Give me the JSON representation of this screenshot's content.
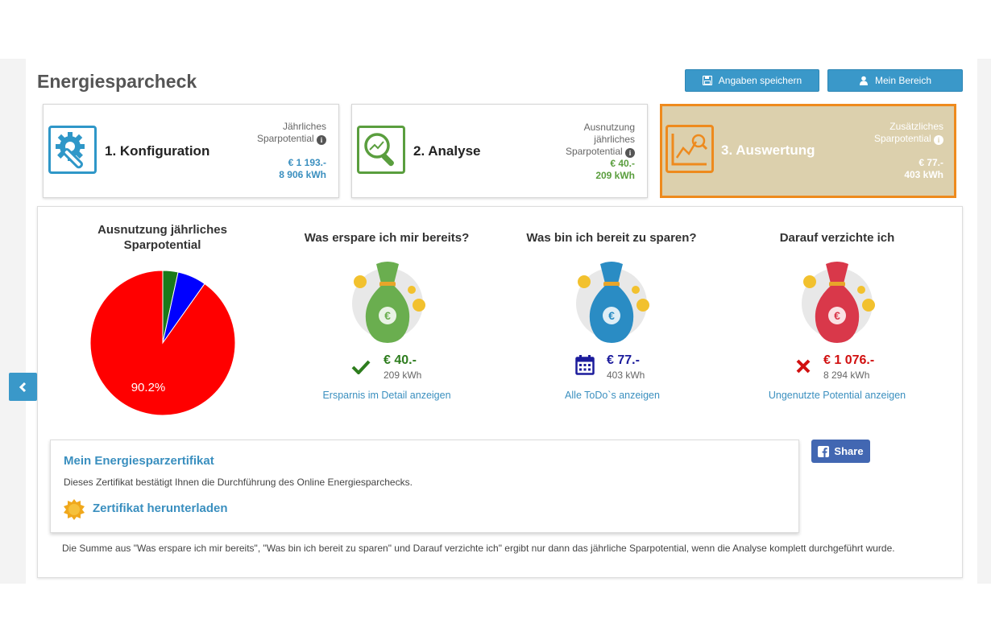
{
  "header": {
    "title": "Energiesparcheck",
    "save_label": "Angaben speichern",
    "area_label": "Mein Bereich"
  },
  "steps": [
    {
      "label": "1. Konfiguration",
      "info_lines": [
        "Jährliches",
        "Sparpotential"
      ],
      "euro": "€ 1 193.-",
      "kwh": "8 906 kWh",
      "value_color": "#3a8fbf",
      "icon": "gear-wrench-icon"
    },
    {
      "label": "2. Analyse",
      "info_lines": [
        "Ausnutzung",
        "jährliches",
        "Sparpotential"
      ],
      "euro": "€ 40.-",
      "kwh": "209 kWh",
      "value_color": "#5a9e3e",
      "icon": "magnifier-chart-icon"
    },
    {
      "label": "3. Auswertung",
      "info_lines": [
        "Zusätzliches",
        "Sparpotential"
      ],
      "euro": "€ 77.-",
      "kwh": "403 kWh",
      "value_color": "#ffffff",
      "icon": "chart-analysis-icon"
    }
  ],
  "pie": {
    "heading": "Ausnutzung jährliches Sparpotential",
    "label": "90.2%"
  },
  "chart_data": {
    "type": "pie",
    "title": "Ausnutzung jährliches Sparpotential",
    "slices": [
      {
        "value": 3.4,
        "color": "#1a7a1a"
      },
      {
        "value": 6.4,
        "color": "#0000ff"
      },
      {
        "value": 90.2,
        "color": "#ff0000"
      }
    ]
  },
  "columns": [
    {
      "heading": "Was erspare ich mir bereits?",
      "amount": "€ 40.-",
      "kwh": "209 kWh",
      "link": "Ersparnis im Detail anzeigen",
      "bag_color": "#6aae4f",
      "amount_color": "#2e7d1e",
      "status_icon": "check-icon"
    },
    {
      "heading": "Was bin ich bereit zu sparen?",
      "amount": "€ 77.-",
      "kwh": "403 kWh",
      "link": "Alle ToDo`s anzeigen",
      "bag_color": "#2a8cc4",
      "amount_color": "#1c1c9c",
      "status_icon": "calendar-icon"
    },
    {
      "heading": "Darauf verzichte ich",
      "amount": "€ 1 076.-",
      "kwh": "8 294 kWh",
      "link": "Ungenutzte Potential anzeigen",
      "bag_color": "#d9384a",
      "amount_color": "#d11010",
      "status_icon": "cross-icon"
    }
  ],
  "certificate": {
    "title": "Mein Energiesparzertifikat",
    "description": "Dieses Zertifikat bestätigt Ihnen die Durchführung des Online Energiesparchecks.",
    "download": "Zertifikat herunterladen"
  },
  "share_label": "Share",
  "note": "Die Summe aus \"Was erspare ich mir bereits\", \"Was bin ich bereit zu sparen\" und Darauf verzichte ich\" ergibt nur dann das jährliche Sparpotential, wenn die Analyse komplett durchgeführt wurde."
}
